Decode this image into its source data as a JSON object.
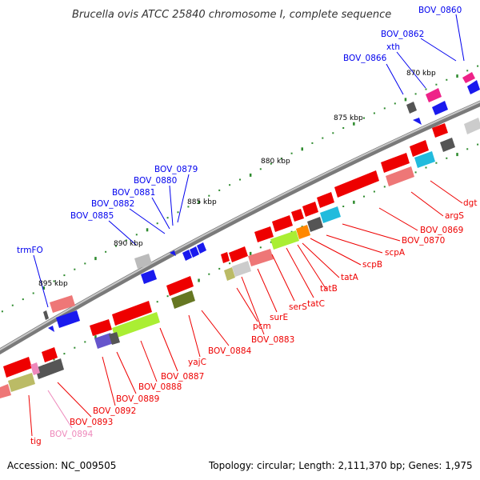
{
  "title": "Brucella ovis ATCC 25840 chromosome I, complete sequence",
  "footer": {
    "accession": "Accession: NC_009505",
    "stats": "Topology: circular; Length: 2,111,370 bp; Genes: 1,975"
  },
  "ticks": [
    "870 kbp",
    "875 kbp",
    "880 kbp",
    "885 kbp",
    "890 kbp",
    "895 kbp"
  ],
  "genes_top": [
    "BOV_0860",
    "BOV_0862",
    "xth",
    "BOV_0866",
    "BOV_0879",
    "BOV_0880",
    "BOV_0881",
    "BOV_0882",
    "BOV_0885",
    "trmFO"
  ],
  "genes_bottom": [
    "dgt",
    "argS",
    "BOV_0869",
    "BOV_0870",
    "scpA",
    "scpB",
    "tatA",
    "tatB",
    "tatC",
    "serS",
    "surE",
    "BOV_0883",
    "pcm",
    "BOV_0884",
    "yajC",
    "BOV_0887",
    "BOV_0888",
    "BOV_0889",
    "BOV_0892",
    "BOV_0893",
    "BOV_0894",
    "tig"
  ],
  "colors": {
    "backbone": "#8c8c8c",
    "gene_top": "#0000ee",
    "gene_bottom": "#ee0000",
    "gene_pseudo": "#ee88bb",
    "tick_dot": "#2e8b2e"
  }
}
